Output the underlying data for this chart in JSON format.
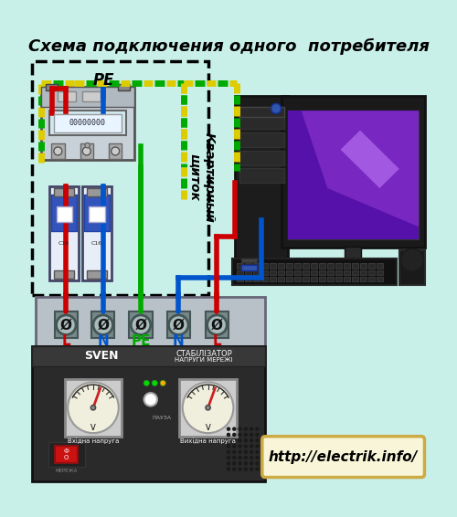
{
  "title": "Схема подключения одного  потребителя",
  "bg_color": "#c8f0e8",
  "title_fontsize": 13,
  "url_text": "http://electrik.info/",
  "pe_label": "PE",
  "panel_label": "Квартирный\nщиток",
  "terminal_labels": [
    "L",
    "N",
    "PE",
    "N",
    "L"
  ],
  "terminal_colors": [
    "#cc0000",
    "#0055cc",
    "#00aa00",
    "#0055cc",
    "#cc0000"
  ],
  "wire_red": "#cc0000",
  "wire_blue": "#0055cc",
  "wire_green": "#00aa00",
  "wire_yellow": "#ddcc00",
  "stab_labels": [
    "СТАБІЛІЗАТОР",
    "НАПРУГИ МЕРЕЖІ"
  ],
  "sven_text": "SVEN",
  "url_bg": "#f8f5d8",
  "url_border": "#ccaa44"
}
